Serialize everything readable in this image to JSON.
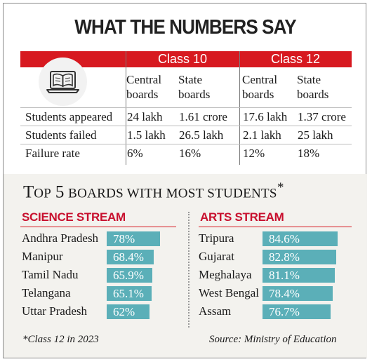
{
  "title": "WHAT THE NUMBERS SAY",
  "table": {
    "groups": [
      "Class 10",
      "Class 12"
    ],
    "columns": [
      "Central boards",
      "State boards",
      "Central boards",
      "State boards"
    ],
    "col_line1": [
      "Central",
      "State",
      "Central",
      "State"
    ],
    "col_line2": [
      "boards",
      "boards",
      "boards",
      "boards"
    ],
    "rows": [
      {
        "label": "Students appeared",
        "values": [
          "24 lakh",
          "1.61 crore",
          "17.6 lakh",
          "1.37 crore"
        ]
      },
      {
        "label": "Students failed",
        "values": [
          "1.5 lakh",
          "26.5 lakh",
          "2.1 lakh",
          "25 lakh"
        ]
      },
      {
        "label": "Failure rate",
        "values": [
          "6%",
          "16%",
          "12%",
          "18%"
        ]
      }
    ]
  },
  "top5": {
    "t": "T",
    "op": "OP",
    "five": "5",
    "rest": "BOARDS WITH MOST STUDENTS",
    "star": "*"
  },
  "chart_data": [
    {
      "type": "bar",
      "title": "SCIENCE STREAM",
      "categories": [
        "Andhra Pradesh",
        "Manipur",
        "Tamil Nadu",
        "Telangana",
        "Uttar Pradesh"
      ],
      "values": [
        78,
        68.4,
        65.9,
        65.1,
        62
      ],
      "labels": [
        "78%",
        "68.4%",
        "65.9%",
        "65.1%",
        "62%"
      ]
    },
    {
      "type": "bar",
      "title": "ARTS STREAM",
      "categories": [
        "Tripura",
        "Gujarat",
        "Meghalaya",
        "West Bengal",
        "Assam"
      ],
      "values": [
        84.6,
        82.8,
        81.1,
        78.4,
        76.7
      ],
      "labels": [
        "84.6%",
        "82.8%",
        "81.1%",
        "78.4%",
        "76.7%"
      ]
    }
  ],
  "footnote": "*Class 12 in 2023",
  "source": "Source: Ministry of Education",
  "colors": {
    "accent": "#d71920",
    "bar": "#5bafb8",
    "stream_title": "#c8102e"
  },
  "icon": "book-on-laptop-icon"
}
